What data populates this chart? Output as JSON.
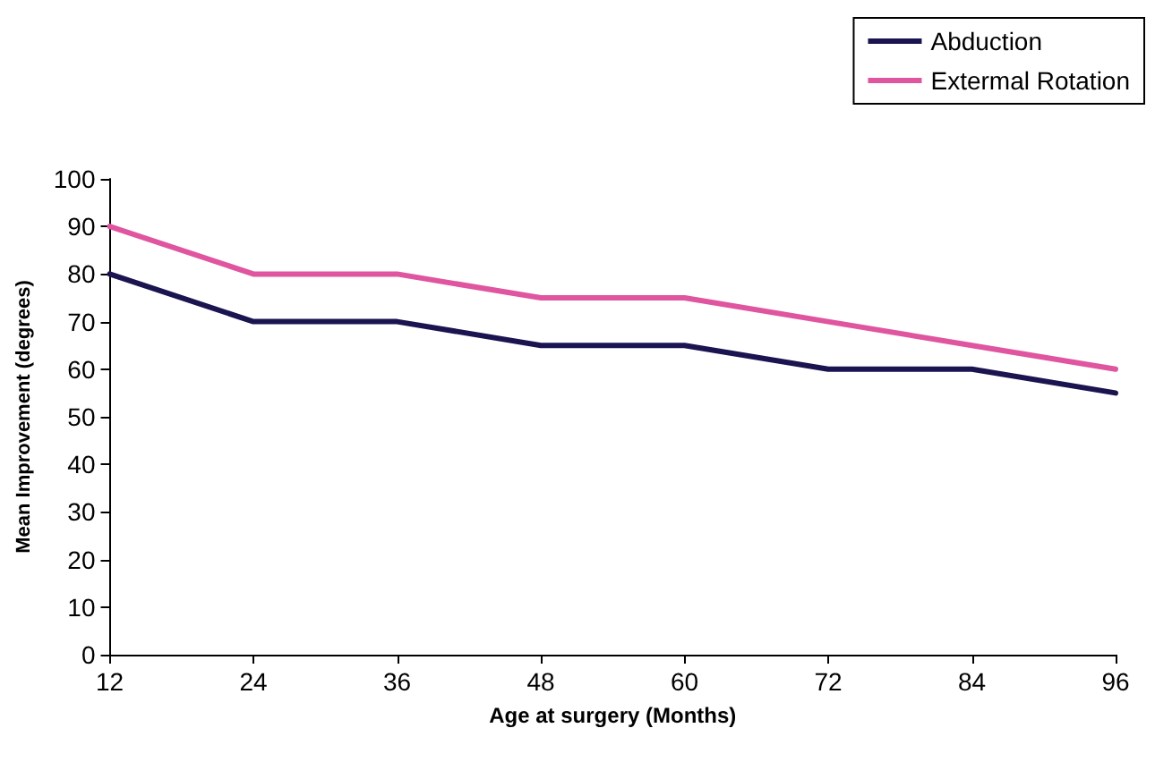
{
  "chart_data": {
    "type": "line",
    "xlabel": "Age at surgery (Months)",
    "ylabel": "Mean Improvement (degrees)",
    "x": [
      12,
      24,
      36,
      48,
      60,
      72,
      84,
      96
    ],
    "series": [
      {
        "name": "Abduction",
        "color": "#1a1450",
        "values": [
          80,
          70,
          70,
          65,
          65,
          60,
          60,
          55
        ]
      },
      {
        "name": "Extermal Rotation",
        "color": "#e0559f",
        "values": [
          90,
          80,
          80,
          75,
          75,
          70,
          65,
          60
        ]
      }
    ],
    "xlim": [
      12,
      96
    ],
    "xticks": [
      12,
      24,
      36,
      48,
      60,
      72,
      84,
      96
    ],
    "ylim": [
      0,
      100
    ],
    "yticks": [
      0,
      10,
      20,
      30,
      40,
      50,
      60,
      70,
      80,
      90,
      100
    ],
    "grid": false,
    "legend": "top right",
    "marker": "none",
    "line_style": "solid"
  }
}
